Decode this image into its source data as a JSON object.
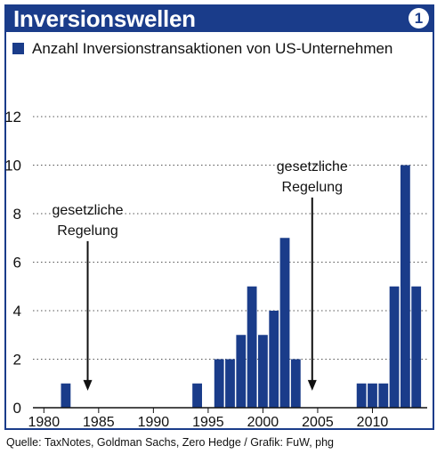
{
  "header": {
    "title": "Inversionswellen",
    "badge": "1"
  },
  "source": "Quelle: TaxNotes, Goldman Sachs, Zero Hedge / Grafik: FuW, phg",
  "colors": {
    "accent": "#1a3c8a",
    "bar": "#1a3c8a"
  },
  "chart_data": {
    "type": "bar",
    "title": "Inversionswellen",
    "xlabel": "",
    "ylabel": "",
    "legend": [
      "Anzahl Inversionstransaktionen von US-Unternehmen"
    ],
    "legend_position": "top-left",
    "grid": "dotted horizontal",
    "xlim": [
      1979,
      2015
    ],
    "ylim": [
      0,
      12
    ],
    "x_ticks": [
      1980,
      1985,
      1990,
      1995,
      2000,
      2005,
      2010
    ],
    "y_ticks": [
      0,
      2,
      4,
      6,
      8,
      10,
      12
    ],
    "series": [
      {
        "name": "Anzahl Inversionstransaktionen von US-Unternehmen",
        "x": [
          1982,
          1994,
          1996,
          1997,
          1998,
          1999,
          2000,
          2001,
          2002,
          2003,
          2009,
          2010,
          2011,
          2012,
          2013,
          2014
        ],
        "values": [
          1,
          1,
          2,
          2,
          3,
          5,
          3,
          4,
          7,
          2,
          1,
          1,
          1,
          5,
          10,
          5
        ]
      }
    ],
    "annotations": [
      {
        "text_line1": "gesetzliche",
        "text_line2": "Regelung",
        "year": 1984,
        "top_value": 6.5
      },
      {
        "text_line1": "gesetzliche",
        "text_line2": "Regelung",
        "year": 2004.5,
        "top_value": 8.3
      }
    ]
  }
}
